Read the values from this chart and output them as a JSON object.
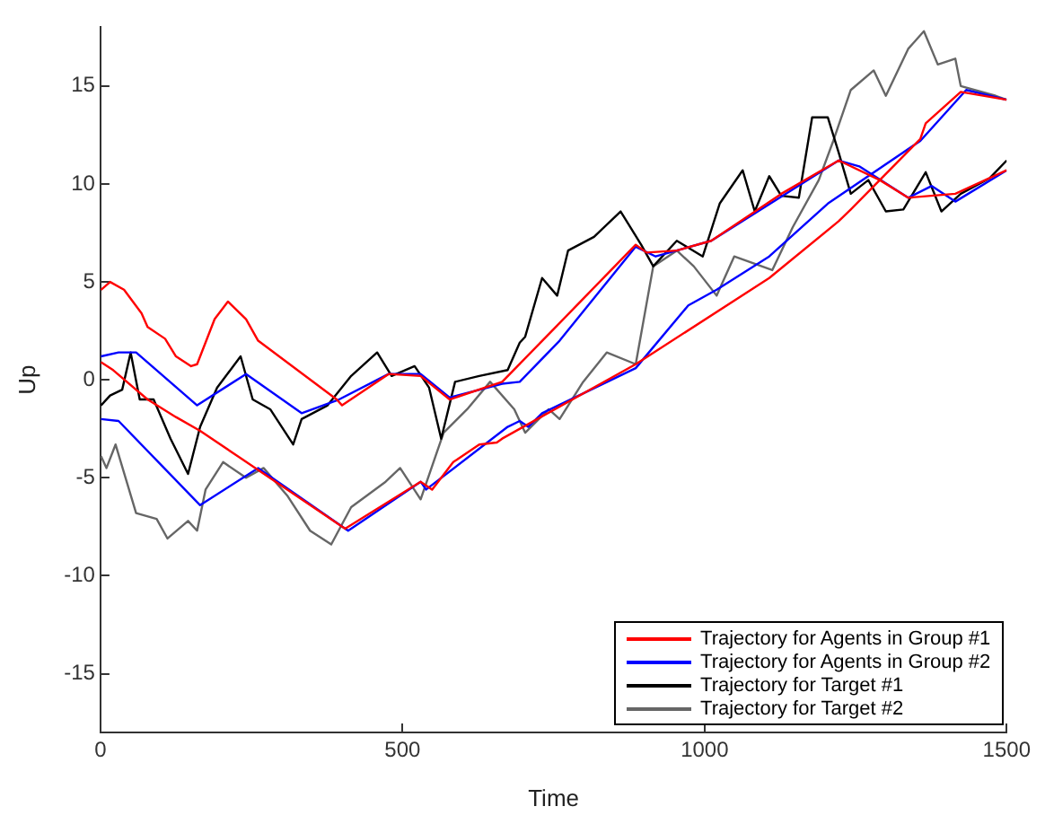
{
  "chart_data": {
    "type": "line",
    "xlabel": "Time",
    "ylabel": "Up",
    "xlim": [
      0,
      1500
    ],
    "xticks": [
      0,
      500,
      1000,
      1500
    ],
    "ylim": [
      -18,
      18
    ],
    "yticks": [
      -15,
      -10,
      -5,
      0,
      5,
      10,
      15
    ],
    "grid": false,
    "legend": "bottom right",
    "marker": "none",
    "line_style": "solid",
    "series": [
      {
        "name": "Trajectory for Agents in Group #1",
        "color": "#ff0000",
        "x": [
          1,
          16,
          39,
          68,
          78,
          107,
          125,
          150,
          160,
          189,
          211,
          241,
          261,
          391,
          400,
          477,
          530,
          578,
          665,
          760,
          886,
          904,
          954,
          1011,
          1127,
          1222,
          1290,
          1337,
          1415,
          1500
        ],
        "values": [
          4.6,
          5.0,
          4.6,
          3.4,
          2.7,
          2.1,
          1.2,
          0.7,
          0.8,
          3.1,
          4.0,
          3.1,
          2.0,
          -1.0,
          -1.3,
          0.3,
          0.2,
          -1.0,
          -0.1,
          2.9,
          6.9,
          6.5,
          6.6,
          7.1,
          9.5,
          11.2,
          10.2,
          9.3,
          9.5,
          10.7
        ]
      },
      {
        "color": "#ff0000",
        "x": [
          1,
          21,
          78,
          125,
          165,
          405,
          530,
          549,
          584,
          627,
          656,
          665,
          886,
          1107,
          1222,
          1242,
          1357,
          1366,
          1424,
          1500
        ],
        "values": [
          0.9,
          0.5,
          -1.0,
          -1.9,
          -2.6,
          -7.6,
          -5.2,
          -5.6,
          -4.2,
          -3.3,
          -3.2,
          -3.0,
          0.8,
          5.2,
          8.1,
          8.7,
          12.3,
          13.1,
          14.7,
          14.3
        ]
      },
      {
        "name": "Trajectory for Agents in Group #2",
        "color": "#0000ff",
        "x": [
          1,
          30,
          59,
          160,
          241,
          333,
          395,
          477,
          530,
          578,
          665,
          694,
          760,
          886,
          919,
          1011,
          1222,
          1256,
          1337,
          1376,
          1415,
          1500
        ],
        "values": [
          1.2,
          1.4,
          1.4,
          -1.3,
          0.3,
          -1.7,
          -1.0,
          0.3,
          0.3,
          -0.9,
          -0.2,
          -0.1,
          2.0,
          6.8,
          6.3,
          7.1,
          11.2,
          10.9,
          9.3,
          9.9,
          9.1,
          10.7
        ]
      },
      {
        "color": "#0000ff",
        "x": [
          1,
          30,
          165,
          261,
          410,
          530,
          539,
          674,
          694,
          708,
          731,
          886,
          973,
          1020,
          1107,
          1204,
          1357,
          1433,
          1500
        ],
        "values": [
          -2.0,
          -2.1,
          -6.4,
          -4.5,
          -7.7,
          -5.2,
          -5.6,
          -2.4,
          -2.1,
          -2.4,
          -1.7,
          0.6,
          3.8,
          4.6,
          6.3,
          9.0,
          12.2,
          14.8,
          14.3
        ]
      },
      {
        "name": "Trajectory for Target #1",
        "color": "#000000",
        "x": [
          1,
          16,
          36,
          50,
          65,
          88,
          116,
          145,
          165,
          193,
          232,
          252,
          281,
          319,
          333,
          376,
          415,
          458,
          482,
          520,
          544,
          564,
          587,
          627,
          674,
          694,
          703,
          731,
          756,
          774,
          817,
          861,
          895,
          915,
          954,
          997,
          1025,
          1063,
          1083,
          1107,
          1127,
          1156,
          1178,
          1204,
          1222,
          1242,
          1271,
          1300,
          1329,
          1366,
          1392,
          1424,
          1472,
          1500
        ],
        "values": [
          -1.3,
          -0.8,
          -0.5,
          1.4,
          -1.0,
          -1.0,
          -3.0,
          -4.8,
          -2.4,
          -0.4,
          1.2,
          -1.0,
          -1.5,
          -3.3,
          -2.0,
          -1.3,
          0.2,
          1.4,
          0.2,
          0.7,
          -0.4,
          -3.0,
          -0.1,
          0.2,
          0.5,
          1.9,
          2.2,
          5.2,
          4.3,
          6.6,
          7.3,
          8.6,
          6.9,
          5.8,
          7.1,
          6.3,
          9.0,
          10.7,
          8.6,
          10.4,
          9.4,
          9.3,
          13.4,
          13.4,
          11.6,
          9.5,
          10.2,
          8.6,
          8.7,
          10.6,
          8.6,
          9.5,
          10.3,
          11.2
        ]
      },
      {
        "name": "Trajectory for Target #2",
        "color": "#666666",
        "x": [
          1,
          10,
          25,
          59,
          93,
          111,
          145,
          160,
          174,
          203,
          241,
          270,
          309,
          347,
          382,
          415,
          472,
          496,
          530,
          568,
          607,
          645,
          685,
          703,
          742,
          760,
          799,
          838,
          886,
          915,
          954,
          982,
          1020,
          1049,
          1112,
          1146,
          1189,
          1213,
          1242,
          1280,
          1300,
          1337,
          1363,
          1386,
          1415,
          1424,
          1482,
          1500
        ],
        "values": [
          -3.9,
          -4.5,
          -3.3,
          -6.8,
          -7.1,
          -8.1,
          -7.2,
          -7.7,
          -5.6,
          -4.2,
          -5.0,
          -4.5,
          -5.9,
          -7.7,
          -8.4,
          -6.5,
          -5.2,
          -4.5,
          -6.1,
          -2.7,
          -1.5,
          -0.1,
          -1.5,
          -2.7,
          -1.5,
          -2.0,
          -0.1,
          1.4,
          0.8,
          5.8,
          6.6,
          5.8,
          4.3,
          6.3,
          5.6,
          7.8,
          10.2,
          12.2,
          14.8,
          15.8,
          14.5,
          16.9,
          17.8,
          16.1,
          16.4,
          15.0,
          14.5,
          14.3
        ]
      }
    ]
  }
}
